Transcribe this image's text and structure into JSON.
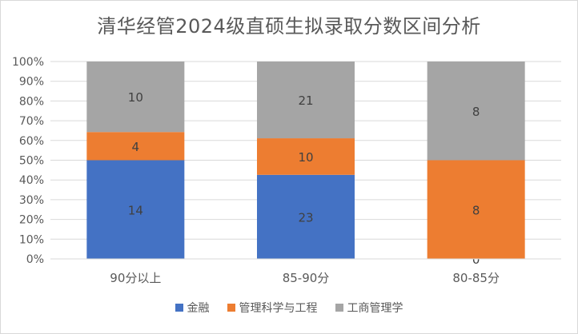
{
  "chart_data": {
    "type": "bar",
    "stacked": "percent",
    "title": "清华经管2024级直硕生拟录取分数区间分析",
    "categories": [
      "90分以上",
      "85-90分",
      "80-85分"
    ],
    "series": [
      {
        "name": "金融",
        "values": [
          14,
          23,
          0
        ],
        "color": "#4472c4"
      },
      {
        "name": "管理科学与工程",
        "values": [
          4,
          10,
          8
        ],
        "color": "#ed7d31"
      },
      {
        "name": "工商管理学",
        "values": [
          10,
          21,
          8
        ],
        "color": "#a5a5a5"
      }
    ],
    "yticks": [
      "0%",
      "10%",
      "20%",
      "30%",
      "40%",
      "50%",
      "60%",
      "70%",
      "80%",
      "90%",
      "100%"
    ],
    "ylim": [
      0,
      100
    ],
    "grid": true,
    "legend": "bottom"
  }
}
